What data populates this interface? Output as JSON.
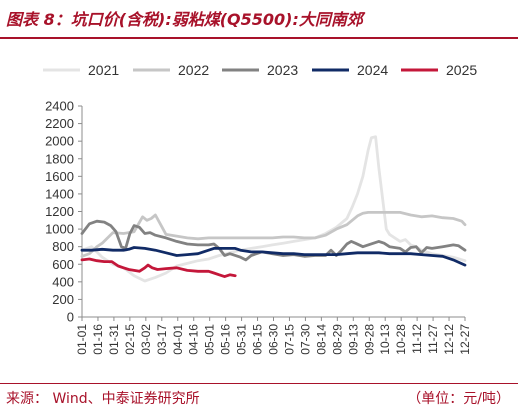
{
  "figure": {
    "title": "图表 8：坑口价(含税):弱粘煤(Q5500):大同南郊",
    "source": "来源：  Wind、中泰证券研究所",
    "unit": "（单位：元/吨）"
  },
  "chart_data": {
    "type": "line",
    "title": "坑口价(含税):弱粘煤(Q5500):大同南郊",
    "xlabel": "",
    "ylabel": "",
    "ylim": [
      0,
      2400
    ],
    "yticks": [
      0,
      200,
      400,
      600,
      800,
      1000,
      1200,
      1400,
      1600,
      1800,
      2000,
      2200,
      2400
    ],
    "grid": false,
    "legend_position": "top",
    "x_tick_labels": [
      "01-01",
      "01-16",
      "01-31",
      "02-15",
      "03-02",
      "03-17",
      "04-01",
      "04-16",
      "05-01",
      "05-16",
      "05-31",
      "06-15",
      "06-30",
      "07-15",
      "07-30",
      "08-14",
      "08-29",
      "09-13",
      "09-28",
      "10-13",
      "10-28",
      "11-12",
      "11-27",
      "12-12",
      "12-27"
    ],
    "x_domain_days": [
      1,
      361
    ],
    "series": [
      {
        "name": "2021",
        "color": "#e4e4e4",
        "points": [
          [
            1,
            760
          ],
          [
            10,
            800
          ],
          [
            20,
            680
          ],
          [
            30,
            600
          ],
          [
            40,
            560
          ],
          [
            50,
            470
          ],
          [
            60,
            410
          ],
          [
            70,
            450
          ],
          [
            80,
            500
          ],
          [
            90,
            580
          ],
          [
            100,
            610
          ],
          [
            110,
            640
          ],
          [
            120,
            660
          ],
          [
            130,
            700
          ],
          [
            140,
            730
          ],
          [
            150,
            760
          ],
          [
            160,
            780
          ],
          [
            170,
            800
          ],
          [
            180,
            820
          ],
          [
            190,
            840
          ],
          [
            200,
            860
          ],
          [
            210,
            880
          ],
          [
            220,
            900
          ],
          [
            230,
            950
          ],
          [
            240,
            1020
          ],
          [
            250,
            1120
          ],
          [
            255,
            1250
          ],
          [
            260,
            1400
          ],
          [
            265,
            1600
          ],
          [
            270,
            1900
          ],
          [
            273,
            2040
          ],
          [
            277,
            2050
          ],
          [
            280,
            1700
          ],
          [
            284,
            1300
          ],
          [
            287,
            1000
          ],
          [
            290,
            940
          ],
          [
            295,
            900
          ],
          [
            300,
            860
          ],
          [
            305,
            880
          ],
          [
            310,
            820
          ],
          [
            315,
            800
          ],
          [
            320,
            760
          ],
          [
            330,
            720
          ],
          [
            340,
            700
          ],
          [
            350,
            680
          ],
          [
            361,
            640
          ]
        ]
      },
      {
        "name": "2022",
        "color": "#c6c6c6",
        "points": [
          [
            1,
            690
          ],
          [
            8,
            720
          ],
          [
            15,
            800
          ],
          [
            20,
            840
          ],
          [
            30,
            960
          ],
          [
            40,
            950
          ],
          [
            50,
            970
          ],
          [
            58,
            1140
          ],
          [
            62,
            1100
          ],
          [
            66,
            1120
          ],
          [
            70,
            1160
          ],
          [
            75,
            1050
          ],
          [
            80,
            940
          ],
          [
            90,
            920
          ],
          [
            100,
            900
          ],
          [
            110,
            890
          ],
          [
            120,
            900
          ],
          [
            130,
            900
          ],
          [
            140,
            900
          ],
          [
            150,
            900
          ],
          [
            160,
            900
          ],
          [
            170,
            900
          ],
          [
            180,
            900
          ],
          [
            190,
            910
          ],
          [
            200,
            910
          ],
          [
            210,
            900
          ],
          [
            220,
            900
          ],
          [
            230,
            930
          ],
          [
            240,
            1000
          ],
          [
            250,
            1050
          ],
          [
            255,
            1100
          ],
          [
            260,
            1150
          ],
          [
            265,
            1180
          ],
          [
            270,
            1190
          ],
          [
            280,
            1190
          ],
          [
            290,
            1190
          ],
          [
            300,
            1190
          ],
          [
            310,
            1160
          ],
          [
            320,
            1140
          ],
          [
            330,
            1150
          ],
          [
            340,
            1130
          ],
          [
            350,
            1120
          ],
          [
            358,
            1090
          ],
          [
            361,
            1050
          ]
        ]
      },
      {
        "name": "2023",
        "color": "#828282",
        "points": [
          [
            1,
            950
          ],
          [
            8,
            1060
          ],
          [
            15,
            1090
          ],
          [
            22,
            1080
          ],
          [
            28,
            1040
          ],
          [
            33,
            970
          ],
          [
            38,
            800
          ],
          [
            42,
            780
          ],
          [
            46,
            950
          ],
          [
            50,
            1040
          ],
          [
            55,
            1020
          ],
          [
            60,
            950
          ],
          [
            65,
            960
          ],
          [
            70,
            930
          ],
          [
            80,
            900
          ],
          [
            90,
            860
          ],
          [
            100,
            830
          ],
          [
            110,
            820
          ],
          [
            120,
            820
          ],
          [
            125,
            830
          ],
          [
            130,
            780
          ],
          [
            135,
            700
          ],
          [
            140,
            720
          ],
          [
            150,
            680
          ],
          [
            155,
            650
          ],
          [
            160,
            700
          ],
          [
            170,
            740
          ],
          [
            180,
            720
          ],
          [
            190,
            700
          ],
          [
            200,
            710
          ],
          [
            210,
            690
          ],
          [
            220,
            700
          ],
          [
            230,
            700
          ],
          [
            235,
            760
          ],
          [
            240,
            700
          ],
          [
            245,
            760
          ],
          [
            250,
            830
          ],
          [
            254,
            860
          ],
          [
            258,
            840
          ],
          [
            265,
            800
          ],
          [
            270,
            820
          ],
          [
            280,
            860
          ],
          [
            285,
            840
          ],
          [
            290,
            800
          ],
          [
            300,
            780
          ],
          [
            305,
            740
          ],
          [
            310,
            790
          ],
          [
            315,
            800
          ],
          [
            320,
            730
          ],
          [
            325,
            790
          ],
          [
            330,
            780
          ],
          [
            340,
            800
          ],
          [
            350,
            820
          ],
          [
            355,
            810
          ],
          [
            361,
            760
          ]
        ]
      },
      {
        "name": "2024",
        "color": "#112b66",
        "points": [
          [
            1,
            760
          ],
          [
            10,
            760
          ],
          [
            20,
            770
          ],
          [
            30,
            760
          ],
          [
            40,
            760
          ],
          [
            45,
            770
          ],
          [
            50,
            790
          ],
          [
            60,
            780
          ],
          [
            70,
            760
          ],
          [
            80,
            730
          ],
          [
            90,
            700
          ],
          [
            100,
            710
          ],
          [
            110,
            720
          ],
          [
            120,
            760
          ],
          [
            125,
            780
          ],
          [
            135,
            780
          ],
          [
            145,
            780
          ],
          [
            150,
            760
          ],
          [
            160,
            740
          ],
          [
            170,
            740
          ],
          [
            180,
            730
          ],
          [
            190,
            720
          ],
          [
            200,
            720
          ],
          [
            210,
            710
          ],
          [
            220,
            710
          ],
          [
            230,
            710
          ],
          [
            240,
            710
          ],
          [
            250,
            720
          ],
          [
            260,
            730
          ],
          [
            270,
            730
          ],
          [
            280,
            730
          ],
          [
            290,
            720
          ],
          [
            300,
            720
          ],
          [
            310,
            720
          ],
          [
            320,
            710
          ],
          [
            330,
            700
          ],
          [
            340,
            690
          ],
          [
            350,
            650
          ],
          [
            361,
            590
          ]
        ]
      },
      {
        "name": "2025",
        "color": "#c4173a",
        "points": [
          [
            1,
            650
          ],
          [
            8,
            660
          ],
          [
            15,
            640
          ],
          [
            22,
            630
          ],
          [
            29,
            630
          ],
          [
            35,
            580
          ],
          [
            40,
            560
          ],
          [
            45,
            540
          ],
          [
            50,
            530
          ],
          [
            55,
            520
          ],
          [
            60,
            560
          ],
          [
            63,
            590
          ],
          [
            67,
            560
          ],
          [
            72,
            540
          ],
          [
            80,
            550
          ],
          [
            90,
            560
          ],
          [
            100,
            530
          ],
          [
            110,
            520
          ],
          [
            120,
            520
          ],
          [
            125,
            500
          ],
          [
            130,
            480
          ],
          [
            135,
            460
          ],
          [
            140,
            480
          ],
          [
            145,
            470
          ]
        ]
      }
    ]
  }
}
